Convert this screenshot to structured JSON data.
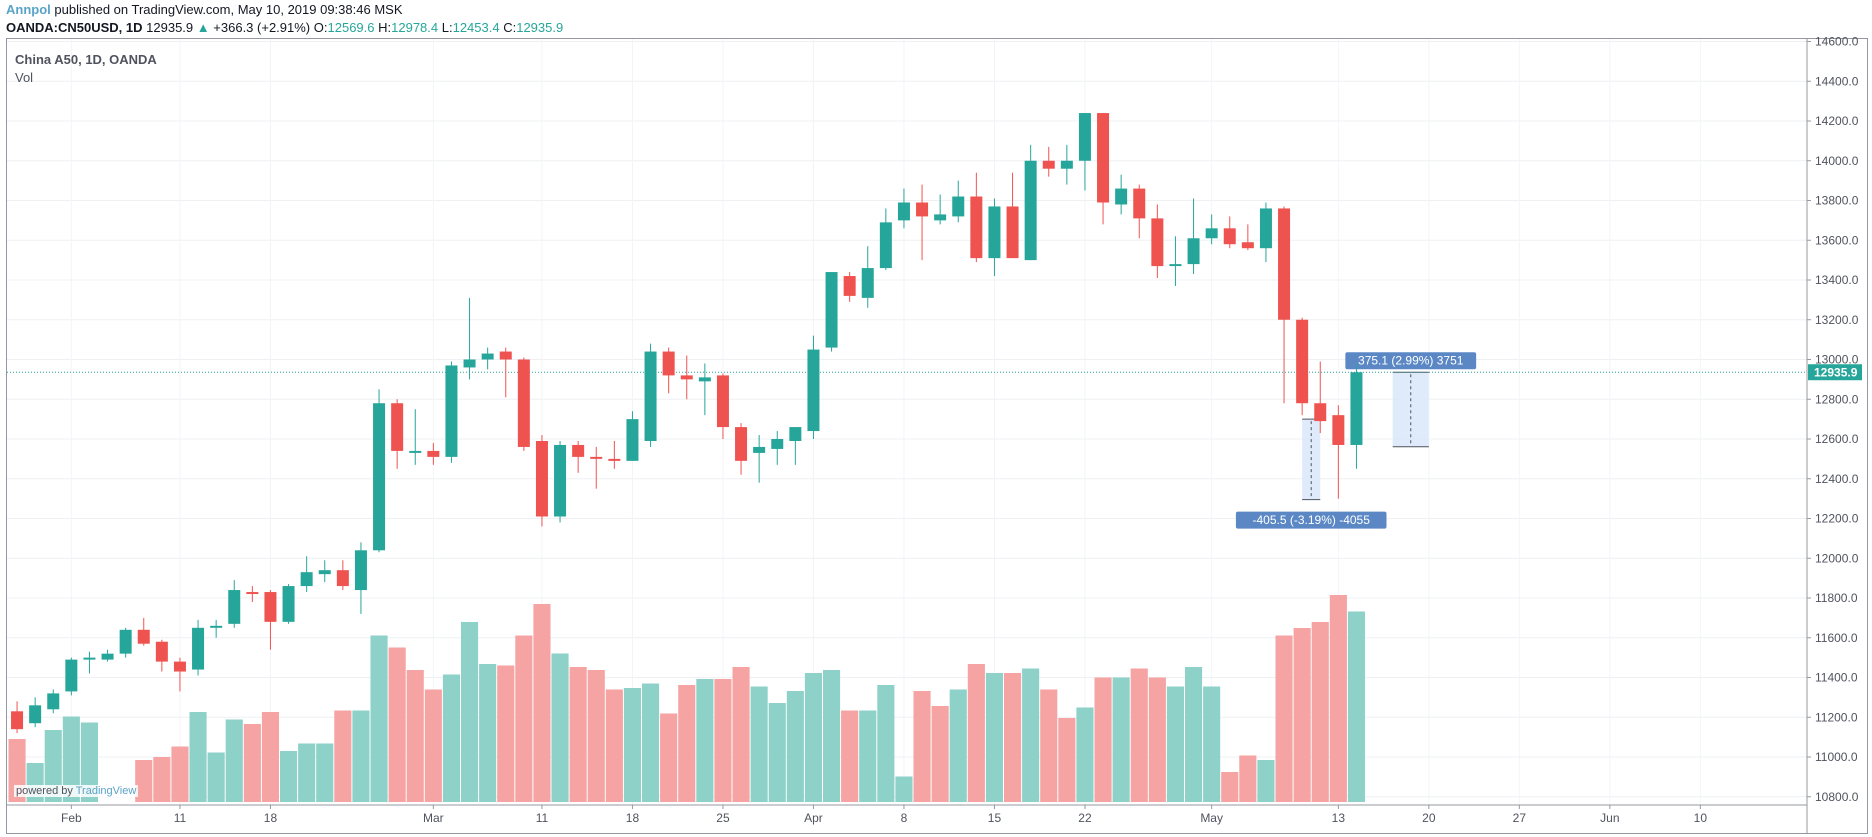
{
  "header": {
    "user": "Annpol",
    "published": "published on TradingView.com, May 10, 2019 09:38:46 MSK"
  },
  "quote": {
    "symbol": "OANDA:CN50USD, 1D",
    "last": "12935.9",
    "change": "+366.3 (+2.91%)",
    "o_label": "O:",
    "o": "12569.6",
    "h_label": "H:",
    "h": "12978.4",
    "l_label": "L:",
    "l": "12453.4",
    "c_label": "C:",
    "c": "12935.9"
  },
  "legend": {
    "title": "China A50, 1D, OANDA",
    "vol": "Vol"
  },
  "powered": {
    "prefix": "powered by",
    "brand": "TradingView"
  },
  "colors": {
    "up": "#26a69a",
    "down": "#ef5350",
    "up_vol": "#8dd1c9",
    "down_vol": "#f5a3a3",
    "price_line": "#26a69a",
    "measure_fill": "#dbe9fb",
    "measure_label": "#5b88c5"
  },
  "chart_data": {
    "type": "candlestick",
    "symbol": "China A50, 1D, OANDA",
    "y_axis_ticks": [
      "14600.0",
      "14400.0",
      "14200.0",
      "14000.0",
      "13800.0",
      "13600.0",
      "13400.0",
      "13200.0",
      "13000.0",
      "12800.0",
      "12600.0",
      "12400.0",
      "12200.0",
      "12000.0",
      "11800.0",
      "11600.0",
      "11400.0",
      "11200.0",
      "11000.0",
      "10800.0"
    ],
    "ylim": [
      10760,
      14630
    ],
    "current_price": 12935.9,
    "current_price_label": "12935.9",
    "x_axis_ticks": [
      {
        "i": 3.5,
        "label": "Feb"
      },
      {
        "i": 9.5,
        "label": "11"
      },
      {
        "i": 14.5,
        "label": "18"
      },
      {
        "i": 23.5,
        "label": "Mar"
      },
      {
        "i": 29.5,
        "label": "11"
      },
      {
        "i": 34.5,
        "label": "18"
      },
      {
        "i": 39.5,
        "label": "25"
      },
      {
        "i": 44.5,
        "label": "Apr"
      },
      {
        "i": 49.5,
        "label": "8"
      },
      {
        "i": 54.5,
        "label": "15"
      },
      {
        "i": 59.5,
        "label": "22"
      },
      {
        "i": 66.5,
        "label": "May"
      },
      {
        "i": 73.5,
        "label": "13"
      },
      {
        "i": 78.5,
        "label": "20"
      },
      {
        "i": 83.5,
        "label": "27"
      },
      {
        "i": 88.5,
        "label": "Jun"
      },
      {
        "i": 93.5,
        "label": "10"
      }
    ],
    "candles": [
      {
        "o": 11230,
        "h": 11280,
        "l": 11120,
        "c": 11140
      },
      {
        "o": 11170,
        "h": 11300,
        "l": 11150,
        "c": 11260
      },
      {
        "o": 11240,
        "h": 11340,
        "l": 11220,
        "c": 11320
      },
      {
        "o": 11330,
        "h": 11500,
        "l": 11310,
        "c": 11490
      },
      {
        "o": 11490,
        "h": 11530,
        "l": 11420,
        "c": 11500
      },
      {
        "o": 11490,
        "h": 11540,
        "l": 11480,
        "c": 11520
      },
      {
        "o": 11520,
        "h": 11650,
        "l": 11500,
        "c": 11640
      },
      {
        "o": 11640,
        "h": 11700,
        "l": 11560,
        "c": 11570
      },
      {
        "o": 11580,
        "h": 11590,
        "l": 11430,
        "c": 11480
      },
      {
        "o": 11480,
        "h": 11500,
        "l": 11330,
        "c": 11430
      },
      {
        "o": 11440,
        "h": 11690,
        "l": 11410,
        "c": 11650
      },
      {
        "o": 11650,
        "h": 11690,
        "l": 11600,
        "c": 11660
      },
      {
        "o": 11670,
        "h": 11890,
        "l": 11650,
        "c": 11840
      },
      {
        "o": 11830,
        "h": 11860,
        "l": 11780,
        "c": 11820
      },
      {
        "o": 11830,
        "h": 11840,
        "l": 11540,
        "c": 11680
      },
      {
        "o": 11680,
        "h": 11870,
        "l": 11670,
        "c": 11860
      },
      {
        "o": 11860,
        "h": 12010,
        "l": 11830,
        "c": 11930
      },
      {
        "o": 11920,
        "h": 11990,
        "l": 11880,
        "c": 11940
      },
      {
        "o": 11940,
        "h": 11990,
        "l": 11840,
        "c": 11860
      },
      {
        "o": 11840,
        "h": 12080,
        "l": 11720,
        "c": 12040
      },
      {
        "o": 12040,
        "h": 12850,
        "l": 12030,
        "c": 12780
      },
      {
        "o": 12780,
        "h": 12800,
        "l": 12450,
        "c": 12540
      },
      {
        "o": 12530,
        "h": 12750,
        "l": 12470,
        "c": 12540
      },
      {
        "o": 12540,
        "h": 12580,
        "l": 12470,
        "c": 12510
      },
      {
        "o": 12510,
        "h": 12990,
        "l": 12480,
        "c": 12970
      },
      {
        "o": 12960,
        "h": 13310,
        "l": 12900,
        "c": 13000
      },
      {
        "o": 13000,
        "h": 13060,
        "l": 12950,
        "c": 13030
      },
      {
        "o": 13040,
        "h": 13060,
        "l": 12810,
        "c": 13000
      },
      {
        "o": 13000,
        "h": 13010,
        "l": 12540,
        "c": 12560
      },
      {
        "o": 12590,
        "h": 12620,
        "l": 12160,
        "c": 12210
      },
      {
        "o": 12210,
        "h": 12590,
        "l": 12180,
        "c": 12570
      },
      {
        "o": 12570,
        "h": 12590,
        "l": 12430,
        "c": 12510
      },
      {
        "o": 12510,
        "h": 12560,
        "l": 12350,
        "c": 12500
      },
      {
        "o": 12500,
        "h": 12590,
        "l": 12450,
        "c": 12490
      },
      {
        "o": 12490,
        "h": 12740,
        "l": 12490,
        "c": 12700
      },
      {
        "o": 12590,
        "h": 13080,
        "l": 12560,
        "c": 13040
      },
      {
        "o": 13040,
        "h": 13060,
        "l": 12830,
        "c": 12920
      },
      {
        "o": 12920,
        "h": 13020,
        "l": 12800,
        "c": 12900
      },
      {
        "o": 12890,
        "h": 12980,
        "l": 12720,
        "c": 12910
      },
      {
        "o": 12920,
        "h": 12930,
        "l": 12600,
        "c": 12660
      },
      {
        "o": 12660,
        "h": 12680,
        "l": 12420,
        "c": 12490
      },
      {
        "o": 12530,
        "h": 12620,
        "l": 12380,
        "c": 12560
      },
      {
        "o": 12550,
        "h": 12640,
        "l": 12470,
        "c": 12600
      },
      {
        "o": 12590,
        "h": 12660,
        "l": 12470,
        "c": 12660
      },
      {
        "o": 12640,
        "h": 13120,
        "l": 12600,
        "c": 13050
      },
      {
        "o": 13060,
        "h": 13440,
        "l": 13040,
        "c": 13440
      },
      {
        "o": 13420,
        "h": 13440,
        "l": 13290,
        "c": 13320
      },
      {
        "o": 13310,
        "h": 13570,
        "l": 13260,
        "c": 13460
      },
      {
        "o": 13460,
        "h": 13760,
        "l": 13450,
        "c": 13690
      },
      {
        "o": 13700,
        "h": 13860,
        "l": 13660,
        "c": 13790
      },
      {
        "o": 13790,
        "h": 13880,
        "l": 13500,
        "c": 13720
      },
      {
        "o": 13700,
        "h": 13830,
        "l": 13680,
        "c": 13730
      },
      {
        "o": 13720,
        "h": 13900,
        "l": 13690,
        "c": 13820
      },
      {
        "o": 13820,
        "h": 13940,
        "l": 13490,
        "c": 13510
      },
      {
        "o": 13510,
        "h": 13810,
        "l": 13420,
        "c": 13770
      },
      {
        "o": 13770,
        "h": 13940,
        "l": 13510,
        "c": 13510
      },
      {
        "o": 13500,
        "h": 14080,
        "l": 13500,
        "c": 14000
      },
      {
        "o": 14000,
        "h": 14070,
        "l": 13920,
        "c": 13960
      },
      {
        "o": 13960,
        "h": 14080,
        "l": 13880,
        "c": 14000
      },
      {
        "o": 14000,
        "h": 14240,
        "l": 13850,
        "c": 14240
      },
      {
        "o": 14240,
        "h": 14240,
        "l": 13680,
        "c": 13790
      },
      {
        "o": 13780,
        "h": 13930,
        "l": 13730,
        "c": 13860
      },
      {
        "o": 13860,
        "h": 13880,
        "l": 13610,
        "c": 13710
      },
      {
        "o": 13710,
        "h": 13780,
        "l": 13410,
        "c": 13470
      },
      {
        "o": 13470,
        "h": 13620,
        "l": 13370,
        "c": 13480
      },
      {
        "o": 13480,
        "h": 13810,
        "l": 13430,
        "c": 13610
      },
      {
        "o": 13610,
        "h": 13730,
        "l": 13580,
        "c": 13660
      },
      {
        "o": 13660,
        "h": 13720,
        "l": 13560,
        "c": 13580
      },
      {
        "o": 13590,
        "h": 13680,
        "l": 13550,
        "c": 13560
      },
      {
        "o": 13560,
        "h": 13790,
        "l": 13490,
        "c": 13760
      },
      {
        "o": 13760,
        "h": 13770,
        "l": 12780,
        "c": 13200
      },
      {
        "o": 13200,
        "h": 13210,
        "l": 12720,
        "c": 12780
      },
      {
        "o": 12780,
        "h": 12990,
        "l": 12630,
        "c": 12690
      },
      {
        "o": 12720,
        "h": 12770,
        "l": 12300,
        "c": 12570
      },
      {
        "o": 12570,
        "h": 12980,
        "l": 12450,
        "c": 12936
      }
    ],
    "volume": [
      {
        "v": 0.42,
        "up": false
      },
      {
        "v": 0.26,
        "up": true
      },
      {
        "v": 0.48,
        "up": true
      },
      {
        "v": 0.57,
        "up": true
      },
      {
        "v": 0.53,
        "up": true
      },
      {
        "v": 0.0,
        "up": true
      },
      {
        "v": 0.0,
        "up": true
      },
      {
        "v": 0.28,
        "up": false
      },
      {
        "v": 0.3,
        "up": false
      },
      {
        "v": 0.37,
        "up": false
      },
      {
        "v": 0.6,
        "up": true
      },
      {
        "v": 0.33,
        "up": true
      },
      {
        "v": 0.55,
        "up": true
      },
      {
        "v": 0.52,
        "up": false
      },
      {
        "v": 0.6,
        "up": false
      },
      {
        "v": 0.34,
        "up": true
      },
      {
        "v": 0.39,
        "up": true
      },
      {
        "v": 0.39,
        "up": true
      },
      {
        "v": 0.61,
        "up": false
      },
      {
        "v": 0.61,
        "up": true
      },
      {
        "v": 1.11,
        "up": true
      },
      {
        "v": 1.03,
        "up": false
      },
      {
        "v": 0.88,
        "up": false
      },
      {
        "v": 0.75,
        "up": false
      },
      {
        "v": 0.85,
        "up": true
      },
      {
        "v": 1.2,
        "up": true
      },
      {
        "v": 0.92,
        "up": true
      },
      {
        "v": 0.91,
        "up": false
      },
      {
        "v": 1.11,
        "up": false
      },
      {
        "v": 1.32,
        "up": false
      },
      {
        "v": 0.99,
        "up": true
      },
      {
        "v": 0.9,
        "up": false
      },
      {
        "v": 0.88,
        "up": false
      },
      {
        "v": 0.75,
        "up": false
      },
      {
        "v": 0.76,
        "up": true
      },
      {
        "v": 0.79,
        "up": true
      },
      {
        "v": 0.59,
        "up": false
      },
      {
        "v": 0.78,
        "up": false
      },
      {
        "v": 0.82,
        "up": true
      },
      {
        "v": 0.82,
        "up": false
      },
      {
        "v": 0.9,
        "up": false
      },
      {
        "v": 0.77,
        "up": true
      },
      {
        "v": 0.66,
        "up": true
      },
      {
        "v": 0.74,
        "up": true
      },
      {
        "v": 0.86,
        "up": true
      },
      {
        "v": 0.88,
        "up": true
      },
      {
        "v": 0.61,
        "up": false
      },
      {
        "v": 0.61,
        "up": true
      },
      {
        "v": 0.78,
        "up": true
      },
      {
        "v": 0.17,
        "up": true
      },
      {
        "v": 0.74,
        "up": false
      },
      {
        "v": 0.64,
        "up": false
      },
      {
        "v": 0.75,
        "up": true
      },
      {
        "v": 0.92,
        "up": false
      },
      {
        "v": 0.86,
        "up": true
      },
      {
        "v": 0.86,
        "up": false
      },
      {
        "v": 0.89,
        "up": true
      },
      {
        "v": 0.75,
        "up": false
      },
      {
        "v": 0.56,
        "up": false
      },
      {
        "v": 0.63,
        "up": true
      },
      {
        "v": 0.83,
        "up": false
      },
      {
        "v": 0.83,
        "up": true
      },
      {
        "v": 0.89,
        "up": false
      },
      {
        "v": 0.83,
        "up": false
      },
      {
        "v": 0.77,
        "up": true
      },
      {
        "v": 0.9,
        "up": true
      },
      {
        "v": 0.77,
        "up": true
      },
      {
        "v": 0.2,
        "up": false
      },
      {
        "v": 0.31,
        "up": false
      },
      {
        "v": 0.28,
        "up": true
      },
      {
        "v": 1.11,
        "up": false
      },
      {
        "v": 1.16,
        "up": false
      },
      {
        "v": 1.2,
        "up": false
      },
      {
        "v": 1.38,
        "up": false
      },
      {
        "v": 1.27,
        "up": true
      }
    ],
    "measurements": [
      {
        "label": "-405.5 (-3.19%) -4055",
        "from_index": 71.5,
        "to_index": 72.5,
        "from_price": 12700,
        "to_price": 12295
      },
      {
        "label": "375.1 (2.99%) 3751",
        "from_index": 76.5,
        "to_index": 78.5,
        "from_price": 12561,
        "to_price": 12936
      }
    ]
  }
}
